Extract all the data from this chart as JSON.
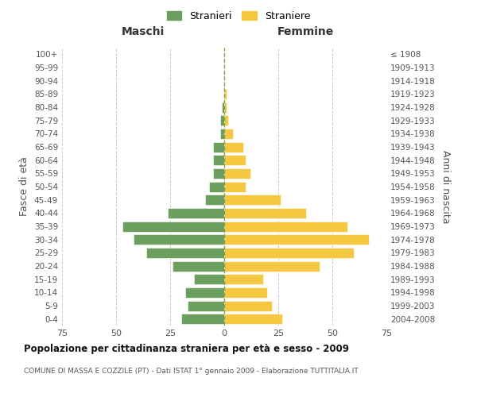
{
  "age_groups": [
    "0-4",
    "5-9",
    "10-14",
    "15-19",
    "20-24",
    "25-29",
    "30-34",
    "35-39",
    "40-44",
    "45-49",
    "50-54",
    "55-59",
    "60-64",
    "65-69",
    "70-74",
    "75-79",
    "80-84",
    "85-89",
    "90-94",
    "95-99",
    "100+"
  ],
  "birth_years": [
    "2004-2008",
    "1999-2003",
    "1994-1998",
    "1989-1993",
    "1984-1988",
    "1979-1983",
    "1974-1978",
    "1969-1973",
    "1964-1968",
    "1959-1963",
    "1954-1958",
    "1949-1953",
    "1944-1948",
    "1939-1943",
    "1934-1938",
    "1929-1933",
    "1924-1928",
    "1919-1923",
    "1914-1918",
    "1909-1913",
    "≤ 1908"
  ],
  "males": [
    20,
    17,
    18,
    14,
    24,
    36,
    42,
    47,
    26,
    9,
    7,
    5,
    5,
    5,
    2,
    2,
    1,
    0,
    0,
    0,
    0
  ],
  "females": [
    27,
    22,
    20,
    18,
    44,
    60,
    67,
    57,
    38,
    26,
    10,
    12,
    10,
    9,
    4,
    2,
    1,
    1,
    0,
    0,
    0
  ],
  "male_color": "#6a9f5e",
  "female_color": "#f5c842",
  "title": "Popolazione per cittadinanza straniera per età e sesso - 2009",
  "subtitle": "COMUNE DI MASSA E COZZILE (PT) - Dati ISTAT 1° gennaio 2009 - Elaborazione TUTTITALIA.IT",
  "ylabel_left": "Fasce di età",
  "ylabel_right": "Anni di nascita",
  "xlabel_left": "Maschi",
  "xlabel_right": "Femmine",
  "legend_stranieri": "Stranieri",
  "legend_straniere": "Straniere",
  "xlim": 75,
  "background_color": "#ffffff",
  "grid_color": "#cccccc",
  "dashed_line_color": "#999944"
}
